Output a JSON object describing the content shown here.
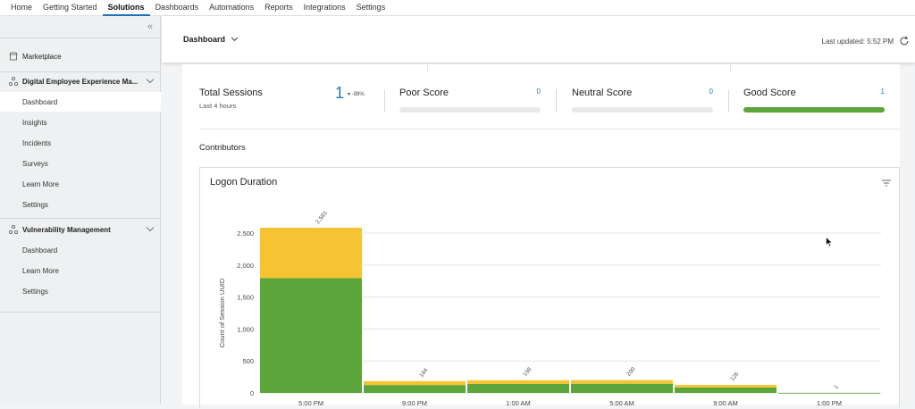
{
  "topnav": {
    "tabs": [
      {
        "label": "Home",
        "active": false
      },
      {
        "label": "Getting Started",
        "active": false
      },
      {
        "label": "Solutions",
        "active": true
      },
      {
        "label": "Dashboards",
        "active": false
      },
      {
        "label": "Automations",
        "active": false
      },
      {
        "label": "Reports",
        "active": false
      },
      {
        "label": "Integrations",
        "active": false
      },
      {
        "label": "Settings",
        "active": false
      }
    ]
  },
  "sidebar": {
    "marketplace": "Marketplace",
    "dex": {
      "title": "Digital Employee Experience Ma...",
      "items": [
        "Dashboard",
        "Insights",
        "Incidents",
        "Surveys",
        "Learn More",
        "Settings"
      ],
      "active_index": 0
    },
    "vuln": {
      "title": "Vulnerability Management",
      "items": [
        "Dashboard",
        "Learn More",
        "Settings"
      ]
    }
  },
  "header": {
    "title": "Dashboard",
    "last_updated": "Last updated: 5:52 PM"
  },
  "kpis": {
    "total": {
      "label": "Total Sessions",
      "sub": "Last 4 hours",
      "value": "1",
      "trend": "▾ -99%"
    },
    "poor": {
      "label": "Poor Score",
      "value": "0",
      "fraction": 0
    },
    "neutral": {
      "label": "Neutral Score",
      "value": "0",
      "fraction": 0
    },
    "good": {
      "label": "Good Score",
      "value": "1",
      "fraction": 1
    }
  },
  "contributors_label": "Contributors",
  "card": {
    "title": "Logon Duration"
  },
  "colors": {
    "green": "#5ca53a",
    "yellow": "#f6c432",
    "accent": "#1a7bc2"
  },
  "chart_data": {
    "type": "bar",
    "stacked": true,
    "categories": [
      "5:00 PM",
      "9:00 PM",
      "1:00 AM",
      "5:00 AM",
      "9:00 AM",
      "1:00 PM"
    ],
    "series": [
      {
        "color": "#5ca53a",
        "values": [
          1795,
          124,
          140,
          144,
          86,
          1
        ]
      },
      {
        "color": "#f6c432",
        "values": [
          788,
          60,
          58,
          56,
          40,
          0
        ]
      }
    ],
    "totals": [
      "2,583",
      "184",
      "198",
      "200",
      "126",
      "1"
    ],
    "ylabel": "Count of Session UUID",
    "yticks": [
      0,
      500,
      1000,
      1500,
      2000,
      2500
    ],
    "ytick_labels": [
      "0",
      "500",
      "1,000",
      "1,500",
      "2,000",
      "2,500"
    ],
    "ylim": [
      0,
      2500
    ],
    "grid": true
  }
}
